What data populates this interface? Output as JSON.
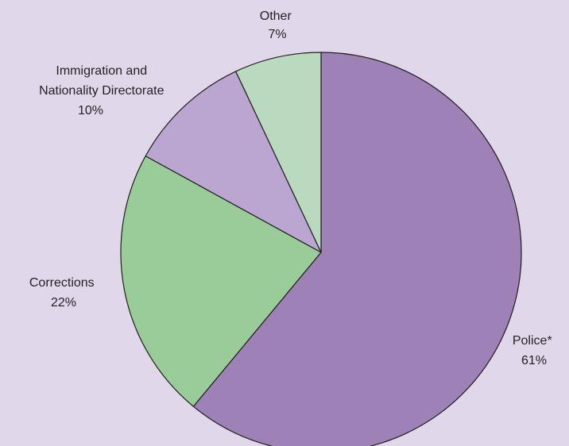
{
  "chart_data": {
    "type": "pie",
    "start_angle_deg": 0,
    "direction": "clockwise",
    "slices": [
      {
        "label": "Police*",
        "pct_label": "61%",
        "value": 61,
        "color": "#9e81b6"
      },
      {
        "label": "Corrections",
        "pct_label": "22%",
        "value": 22,
        "color": "#99cc99"
      },
      {
        "label": "Immigration and Nationality Directorate",
        "pct_label": "10%",
        "value": 10,
        "color": "#bba6d2"
      },
      {
        "label": "Other",
        "pct_label": "7%",
        "value": 7,
        "color": "#b9dabe"
      }
    ],
    "colors": {
      "background": "#e0d7ea",
      "outline": "#231f20"
    }
  }
}
